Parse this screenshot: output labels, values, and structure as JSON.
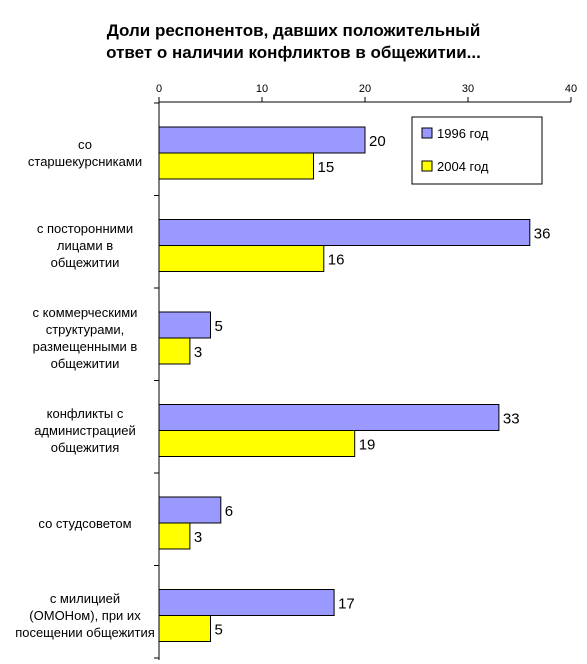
{
  "chart_data": {
    "type": "bar",
    "orientation": "horizontal",
    "title_lines": [
      "Доли респонентов, давших положительный",
      "ответ о наличии конфликтов в общежитии..."
    ],
    "categories": [
      "со старшекурсниками",
      "с посторонними лицами в общежитии",
      "с коммерческими структурами, размещенными в общежитии",
      "конфликты с администрацией общежития",
      "со студсоветом",
      "с милицией (ОМОНом), при их посещении общежития"
    ],
    "series": [
      {
        "name": "1996 год",
        "color": "#9999ff",
        "values": [
          20,
          36,
          5,
          33,
          6,
          17
        ]
      },
      {
        "name": "2004 год",
        "color": "#ffff00",
        "values": [
          15,
          16,
          3,
          19,
          3,
          5
        ]
      }
    ],
    "xlim": [
      0,
      40
    ],
    "ticks": [
      "0",
      "10",
      "20",
      "30",
      "40"
    ],
    "tick_values": [
      0,
      10,
      20,
      30,
      40
    ],
    "axis_position": "top",
    "grid": false,
    "legend_position": "top-right"
  }
}
